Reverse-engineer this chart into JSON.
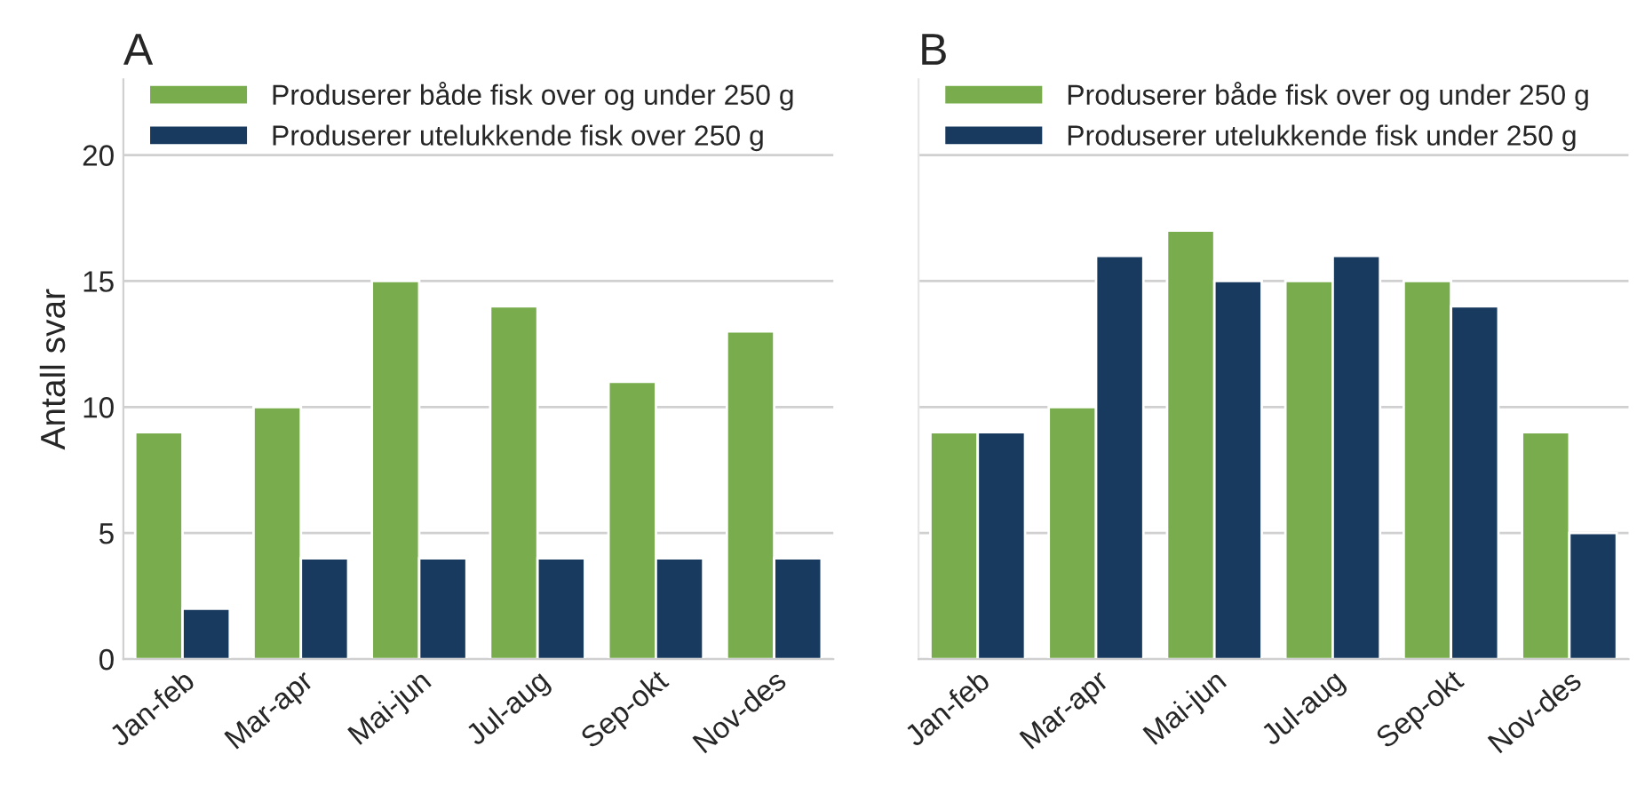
{
  "chart_data": [
    {
      "type": "bar",
      "title": "A",
      "ylabel": "Antall svar",
      "categories": [
        "Jan-feb",
        "Mar-apr",
        "Mai-jun",
        "Jul-aug",
        "Sep-okt",
        "Nov-des"
      ],
      "series": [
        {
          "name": "Produserer både fisk over og under 250 g",
          "color": "#78ac4c",
          "values": [
            9,
            10,
            15,
            14,
            11,
            13
          ]
        },
        {
          "name": "Produserer utelukkende fisk over 250 g",
          "color": "#173a5e",
          "values": [
            2,
            4,
            4,
            4,
            4,
            4
          ]
        }
      ],
      "ylim": [
        0,
        23
      ],
      "yticks": [
        0,
        5,
        10,
        15,
        20
      ],
      "grid": "y",
      "legend": "top"
    },
    {
      "type": "bar",
      "title": "B",
      "categories": [
        "Jan-feb",
        "Mar-apr",
        "Mai-jun",
        "Jul-aug",
        "Sep-okt",
        "Nov-des"
      ],
      "series": [
        {
          "name": "Produserer både fisk over og under 250 g",
          "color": "#78ac4c",
          "values": [
            9,
            10,
            17,
            15,
            15,
            9
          ]
        },
        {
          "name": "Produserer utelukkende fisk under 250 g",
          "color": "#173a5e",
          "values": [
            9,
            16,
            15,
            16,
            14,
            5
          ]
        }
      ],
      "ylim": [
        0,
        23
      ],
      "yticks": [
        0,
        5,
        10,
        15,
        20
      ],
      "grid": "y",
      "legend": "top",
      "tick_labels": "x"
    }
  ]
}
